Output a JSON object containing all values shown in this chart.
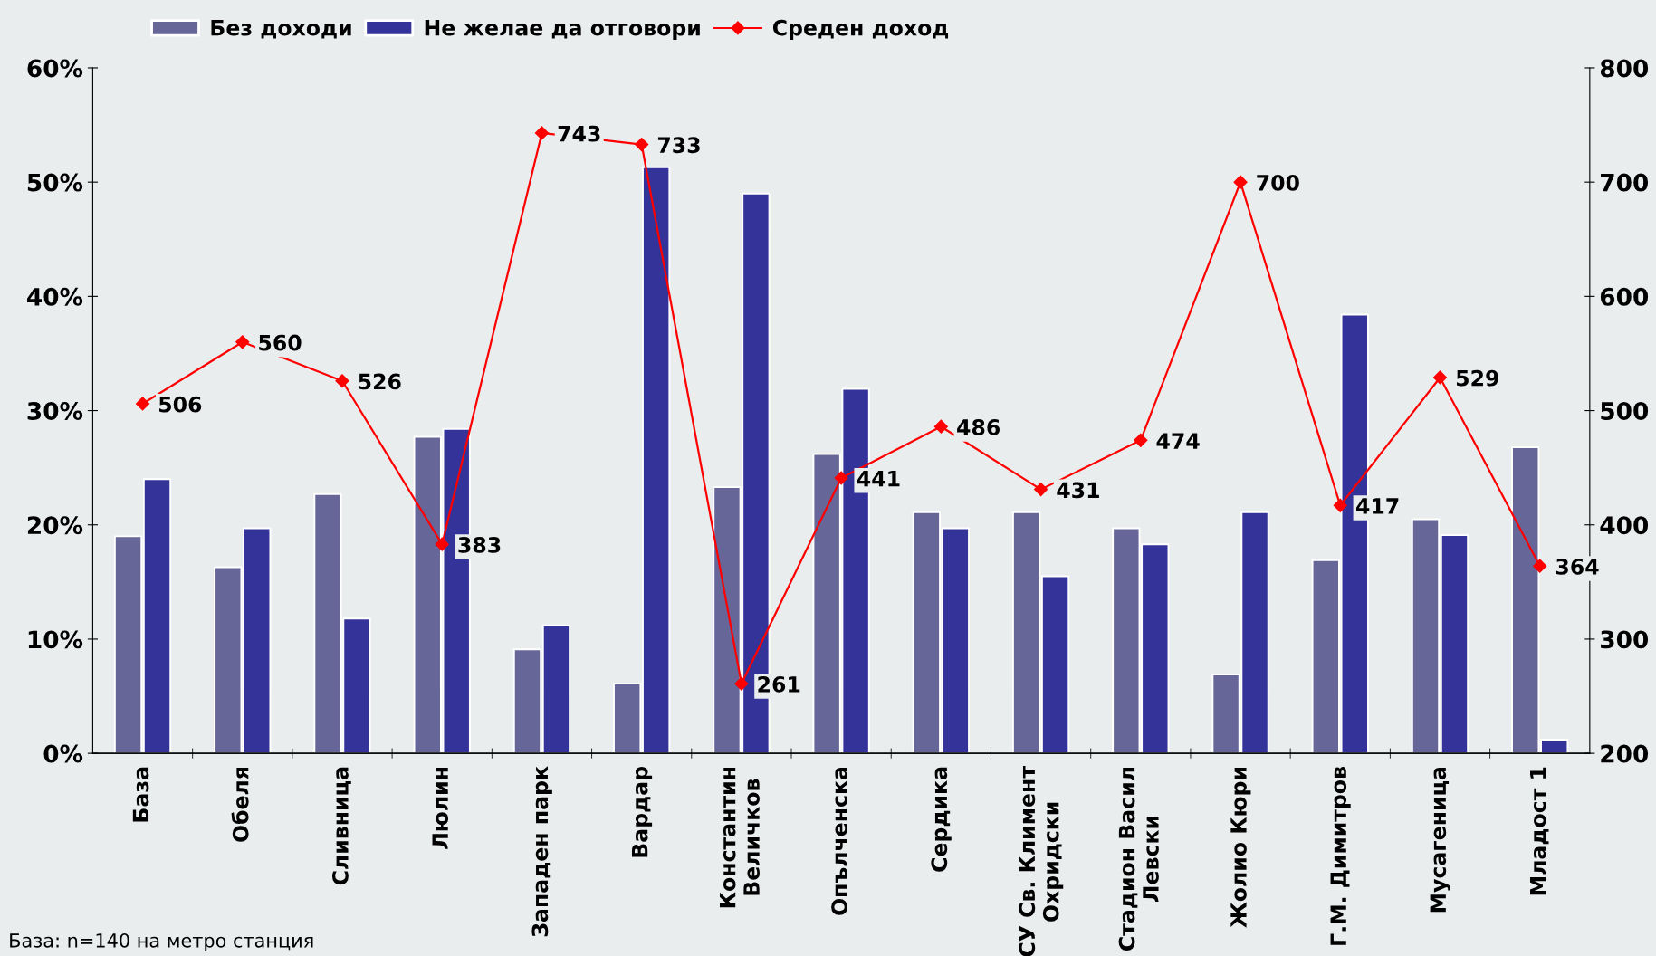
{
  "chart_data": {
    "type": "bar",
    "categories": [
      "База",
      "Обеля",
      "Сливница",
      "Люлин",
      "Западен парк",
      "Вардар",
      "Константин\nВеличков",
      "Опълченска",
      "Сердика",
      "СУ Св. Климент\nОхридски",
      "Стадион Васил\nЛевски",
      "Жолио Кюри",
      "Г.М. Димитров",
      "Мусагеница",
      "Младост 1"
    ],
    "series": [
      {
        "name": "Без доходи",
        "color": "#666699",
        "values": [
          19.0,
          16.3,
          22.7,
          27.7,
          9.1,
          6.1,
          23.3,
          26.2,
          21.1,
          21.1,
          19.7,
          6.9,
          16.9,
          20.5,
          26.8
        ]
      },
      {
        "name": "Не желае да отговори",
        "color": "#333399",
        "values": [
          24.0,
          19.7,
          11.8,
          28.4,
          11.2,
          51.3,
          49.0,
          31.9,
          19.7,
          15.5,
          18.3,
          21.1,
          38.4,
          19.1,
          1.2
        ]
      },
      {
        "name": "Среден доход",
        "type": "line",
        "axis": "y2",
        "color": "#ff0000",
        "marker": "diamond",
        "line_style": "solid",
        "values": [
          506,
          560,
          526,
          383,
          743,
          733,
          261,
          441,
          486,
          431,
          474,
          700,
          417,
          529,
          364
        ],
        "value_labels": [
          "506",
          "560",
          "526",
          "383",
          "743",
          "733",
          "261",
          "441",
          "486",
          "431",
          "474",
          "700",
          "417",
          "529",
          "364"
        ]
      }
    ],
    "ylim": [
      0,
      60
    ],
    "yticks": [
      {
        "value": 0,
        "label": "0%"
      },
      {
        "value": 10,
        "label": "10%"
      },
      {
        "value": 20,
        "label": "20%"
      },
      {
        "value": 30,
        "label": "30%"
      },
      {
        "value": 40,
        "label": "40%"
      },
      {
        "value": 50,
        "label": "50%"
      },
      {
        "value": 60,
        "label": "60%"
      }
    ],
    "y2lim": [
      200,
      800
    ],
    "y2ticks": [
      200,
      300,
      400,
      500,
      600,
      700,
      800
    ],
    "grid": false,
    "legend": "top left",
    "annotations": [
      "База: n=140 на метро станция"
    ]
  }
}
